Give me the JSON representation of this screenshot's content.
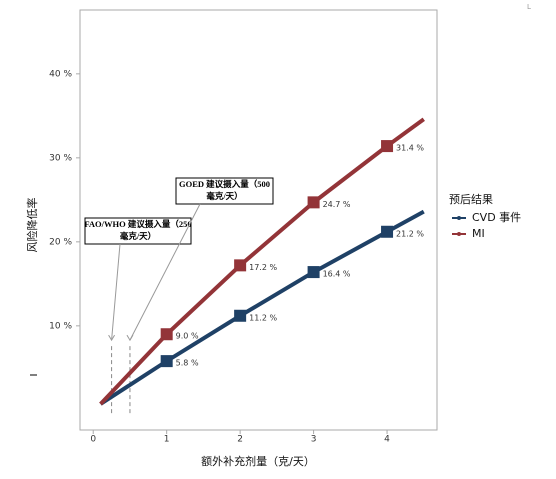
{
  "corner_mark": "L",
  "chart_data": {
    "type": "line",
    "xlabel": "额外补充剂量（克/天）",
    "ylabel": "风险降低率",
    "xlim": [
      -0.18,
      4.68
    ],
    "ylim": [
      -2.4,
      47.6
    ],
    "xticks": [
      0,
      1,
      2,
      3,
      4
    ],
    "yticks": [
      {
        "value": 10,
        "label": "10 %"
      },
      {
        "value": 20,
        "label": "20 %"
      },
      {
        "value": 30,
        "label": "30 %"
      },
      {
        "value": 40,
        "label": "40 %"
      }
    ],
    "grid": false,
    "legend": {
      "title": "预后结果",
      "position": "right"
    },
    "x": [
      0.1,
      1,
      2,
      3,
      4,
      4.5
    ],
    "series": [
      {
        "name": "CVD 事件",
        "color": "#1f4166",
        "values": [
          0.7,
          5.8,
          11.2,
          16.4,
          21.2,
          23.6
        ],
        "value_labels": [
          null,
          "5.8 %",
          "11.2 %",
          "16.4 %",
          "21.2 %",
          null
        ]
      },
      {
        "name": "MI",
        "color": "#933438",
        "values": [
          0.7,
          9.0,
          17.2,
          24.7,
          31.4,
          34.6
        ],
        "value_labels": [
          null,
          "9.0 %",
          "17.2 %",
          "24.7 %",
          "31.4 %",
          null
        ]
      }
    ],
    "annotations": [
      {
        "lines": [
          "FAO/WHO 建议摄入量（250",
          "毫克/天）"
        ],
        "x": 0.25
      },
      {
        "lines": [
          "GOED 建议摄入量（500",
          "毫克/天）"
        ],
        "x": 0.5
      }
    ]
  }
}
